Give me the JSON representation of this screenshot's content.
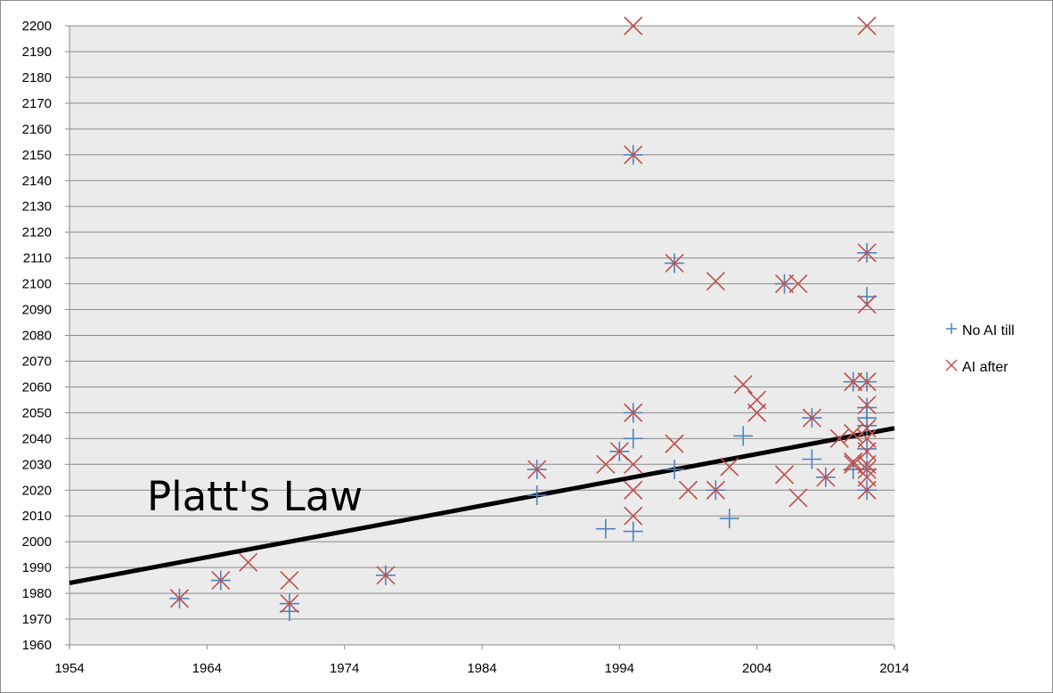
{
  "chart_data": {
    "type": "scatter",
    "title": "",
    "xlabel": "",
    "ylabel": "",
    "xlim": [
      1954,
      2014
    ],
    "ylim": [
      1960,
      2200
    ],
    "x_ticks": [
      1954,
      1964,
      1974,
      1984,
      1994,
      2004,
      2014
    ],
    "y_ticks": [
      1960,
      1970,
      1980,
      1990,
      2000,
      2010,
      2020,
      2030,
      2040,
      2050,
      2060,
      2070,
      2080,
      2090,
      2100,
      2110,
      2120,
      2130,
      2140,
      2150,
      2160,
      2170,
      2180,
      2190,
      2200
    ],
    "grid": "horizontal",
    "legend_position": "right",
    "series": [
      {
        "name": "No AI till",
        "marker": "+",
        "color": "#4f81bd",
        "points": [
          [
            1962,
            1978
          ],
          [
            1965,
            1985
          ],
          [
            1970,
            1976
          ],
          [
            1970,
            1973
          ],
          [
            1977,
            1987
          ],
          [
            1988,
            2028
          ],
          [
            1988,
            2018
          ],
          [
            1993,
            2005
          ],
          [
            1994,
            2035
          ],
          [
            1995,
            2040
          ],
          [
            1995,
            2004
          ],
          [
            1995,
            2050
          ],
          [
            1995,
            2150
          ],
          [
            1998,
            2108
          ],
          [
            1998,
            2028
          ],
          [
            2001,
            2020
          ],
          [
            2002,
            2009
          ],
          [
            2003,
            2041
          ],
          [
            2006,
            2100
          ],
          [
            2008,
            2048
          ],
          [
            2008,
            2032
          ],
          [
            2009,
            2025
          ],
          [
            2011,
            2062
          ],
          [
            2011,
            2028
          ],
          [
            2012,
            2062
          ],
          [
            2012,
            2052
          ],
          [
            2012,
            2048
          ],
          [
            2012,
            2045
          ],
          [
            2012,
            2036
          ],
          [
            2012,
            2028
          ],
          [
            2012,
            2020
          ],
          [
            2012,
            2095
          ],
          [
            2012,
            2112
          ]
        ]
      },
      {
        "name": "AI after",
        "marker": "x",
        "color": "#c0504d",
        "points": [
          [
            1962,
            1978
          ],
          [
            1965,
            1985
          ],
          [
            1967,
            1992
          ],
          [
            1970,
            1985
          ],
          [
            1970,
            1976
          ],
          [
            1977,
            1987
          ],
          [
            1988,
            2028
          ],
          [
            1993,
            2030
          ],
          [
            1994,
            2035
          ],
          [
            1995,
            2050
          ],
          [
            1995,
            2030
          ],
          [
            1995,
            2020
          ],
          [
            1995,
            2010
          ],
          [
            1995,
            2150
          ],
          [
            1995,
            2200
          ],
          [
            1998,
            2038
          ],
          [
            1998,
            2108
          ],
          [
            1999,
            2020
          ],
          [
            2001,
            2020
          ],
          [
            2001,
            2101
          ],
          [
            2002,
            2029
          ],
          [
            2003,
            2061
          ],
          [
            2004,
            2055
          ],
          [
            2004,
            2050
          ],
          [
            2006,
            2100
          ],
          [
            2006,
            2026
          ],
          [
            2007,
            2100
          ],
          [
            2007,
            2017
          ],
          [
            2008,
            2048
          ],
          [
            2009,
            2025
          ],
          [
            2010,
            2040
          ],
          [
            2011,
            2062
          ],
          [
            2011,
            2042
          ],
          [
            2011,
            2031
          ],
          [
            2011,
            2030
          ],
          [
            2012,
            2062
          ],
          [
            2012,
            2053
          ],
          [
            2012,
            2044
          ],
          [
            2012,
            2040
          ],
          [
            2012,
            2035
          ],
          [
            2012,
            2030
          ],
          [
            2012,
            2028
          ],
          [
            2012,
            2025
          ],
          [
            2012,
            2020
          ],
          [
            2012,
            2092
          ],
          [
            2012,
            2112
          ],
          [
            2012,
            2200
          ]
        ]
      }
    ],
    "trendline": {
      "color": "#000000",
      "points": [
        [
          1954,
          1984
        ],
        [
          2014,
          2044
        ]
      ]
    },
    "annotations": [
      {
        "text": "Platt's Law"
      }
    ]
  }
}
